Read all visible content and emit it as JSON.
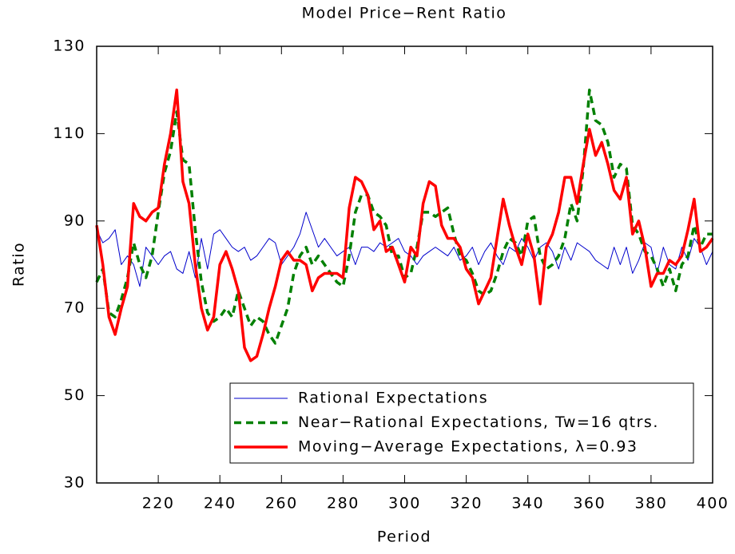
{
  "chart_data": {
    "type": "line",
    "title": "Model Price−Rent Ratio",
    "x_label": "Period",
    "y_label": "Ratio",
    "x": [
      200,
      202,
      204,
      206,
      208,
      210,
      212,
      214,
      216,
      218,
      220,
      222,
      224,
      226,
      228,
      230,
      232,
      234,
      236,
      238,
      240,
      242,
      244,
      246,
      248,
      250,
      252,
      254,
      256,
      258,
      260,
      262,
      264,
      266,
      268,
      270,
      272,
      274,
      276,
      278,
      280,
      282,
      284,
      286,
      288,
      290,
      292,
      294,
      296,
      298,
      300,
      302,
      304,
      306,
      308,
      310,
      312,
      314,
      316,
      318,
      320,
      322,
      324,
      326,
      328,
      330,
      332,
      334,
      336,
      338,
      340,
      342,
      344,
      346,
      348,
      350,
      352,
      354,
      356,
      358,
      360,
      362,
      364,
      366,
      368,
      370,
      372,
      374,
      376,
      378,
      380,
      382,
      384,
      386,
      388,
      390,
      392,
      394,
      396,
      398,
      400
    ],
    "series": [
      {
        "name": "Rational Expectations",
        "color": "#0000cc",
        "width": 1,
        "values": [
          88,
          85,
          86,
          88,
          80,
          82,
          80,
          75,
          84,
          82,
          80,
          82,
          83,
          79,
          78,
          83,
          77,
          86,
          79,
          87,
          88,
          86,
          84,
          83,
          84,
          81,
          82,
          84,
          86,
          85,
          80,
          82,
          84,
          87,
          92,
          88,
          84,
          86,
          84,
          82,
          83,
          84,
          80,
          84,
          84,
          83,
          85,
          84,
          85,
          86,
          83,
          82,
          80,
          82,
          83,
          84,
          83,
          82,
          84,
          81,
          82,
          84,
          80,
          83,
          85,
          82,
          80,
          84,
          83,
          86,
          84,
          81,
          84,
          85,
          83,
          79,
          84,
          81,
          85,
          84,
          83,
          81,
          80,
          79,
          84,
          80,
          84,
          78,
          81,
          85,
          84,
          78,
          84,
          80,
          79,
          84,
          81,
          86,
          84,
          80,
          83
        ]
      },
      {
        "name": "Near−Rational Expectations, Tw=16 qtrs.",
        "color": "#008000",
        "width": 3.5,
        "dash": "9 6",
        "values": [
          76,
          79,
          69,
          68,
          72,
          77,
          85,
          80,
          77,
          82,
          92,
          101,
          106,
          115,
          104,
          103,
          88,
          76,
          69,
          67,
          68,
          70,
          68,
          74,
          70,
          66,
          68,
          67,
          64,
          62,
          66,
          70,
          78,
          82,
          84,
          80,
          82,
          80,
          78,
          76,
          75,
          82,
          92,
          96,
          96,
          92,
          91,
          89,
          82,
          82,
          77,
          78,
          84,
          92,
          92,
          91,
          92,
          93,
          87,
          82,
          81,
          78,
          74,
          73,
          74,
          78,
          83,
          86,
          85,
          82,
          90,
          91,
          82,
          79,
          80,
          82,
          86,
          94,
          90,
          102,
          120,
          113,
          112,
          108,
          100,
          103,
          102,
          89,
          87,
          83,
          82,
          79,
          75,
          79,
          74,
          80,
          82,
          89,
          84,
          87,
          87
        ]
      },
      {
        "name": "Moving−Average Expectations, λ=0.93",
        "color": "#ff0000",
        "width": 3.5,
        "values": [
          89,
          80,
          68,
          64,
          70,
          75,
          94,
          91,
          90,
          92,
          93,
          103,
          110,
          120,
          99,
          94,
          80,
          70,
          65,
          68,
          80,
          83,
          79,
          74,
          61,
          58,
          59,
          64,
          70,
          75,
          81,
          83,
          81,
          81,
          80,
          74,
          77,
          78,
          78,
          78,
          77,
          93,
          100,
          99,
          96,
          88,
          90,
          83,
          84,
          80,
          76,
          84,
          82,
          94,
          99,
          98,
          89,
          86,
          86,
          84,
          79,
          77,
          71,
          74,
          77,
          86,
          95,
          89,
          84,
          80,
          87,
          82,
          71,
          84,
          87,
          92,
          100,
          100,
          94,
          103,
          111,
          105,
          108,
          103,
          97,
          95,
          100,
          87,
          90,
          84,
          75,
          78,
          78,
          81,
          80,
          82,
          88,
          95,
          83,
          84,
          86
        ]
      }
    ],
    "xlim": [
      200,
      400
    ],
    "xticks": [
      220,
      240,
      260,
      280,
      300,
      320,
      340,
      360,
      380,
      400
    ],
    "ylim": [
      30,
      130
    ],
    "yticks": [
      30,
      50,
      70,
      90,
      110,
      130
    ],
    "legend": "lower center"
  }
}
